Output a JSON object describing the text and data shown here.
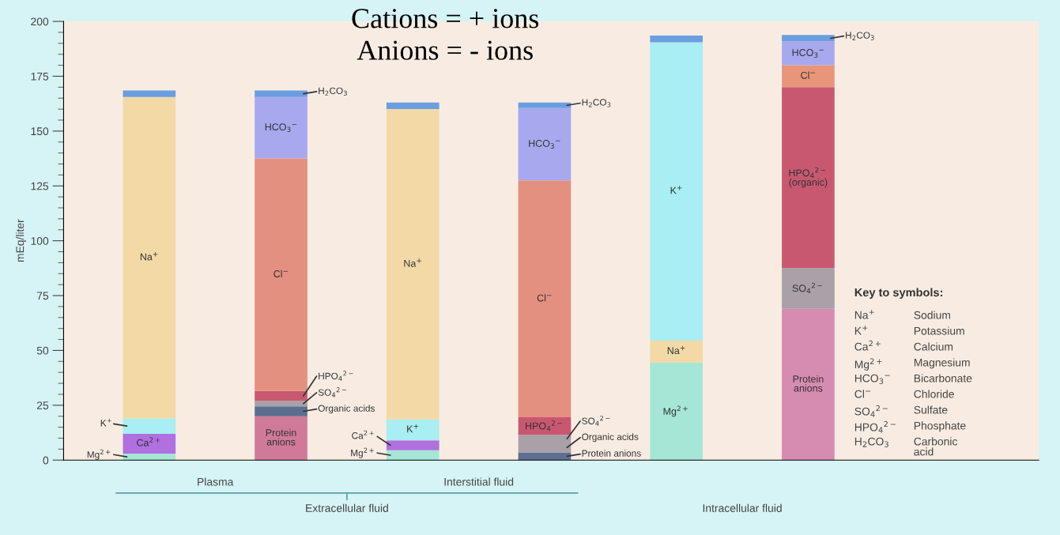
{
  "chart_data": {
    "type": "bar",
    "stacked": true,
    "title": "Cations = + ions\nAnions = - ions",
    "ylabel": "mEq/liter",
    "categories": [
      null,
      null,
      null,
      null,
      null,
      null
    ],
    "ylim": [
      0,
      200
    ],
    "yticks": [
      0,
      25,
      50,
      75,
      100,
      125,
      150,
      175,
      200
    ],
    "grid": false,
    "series": [
      {
        "name": "Mg$^{2+}$",
        "color": "#a6e6d6",
        "values": [
          3,
          null,
          4.5,
          null,
          44.5,
          null
        ]
      },
      {
        "name": "Ca$^{2+}$",
        "color": "#b070e0",
        "values": [
          9,
          null,
          4.5,
          null,
          null,
          null
        ]
      },
      {
        "name": "K$^{+}$",
        "color": "#a8eef2",
        "values": [
          7,
          null,
          9.5,
          null,
          null,
          null
        ]
      },
      {
        "name": "Na$^{+}$",
        "color": "#f2d9a6",
        "values": [
          146.5,
          null,
          141.5,
          null,
          10,
          null
        ]
      },
      {
        "name": "K$^{+}$",
        "color": "#a8eef2",
        "values": [
          null,
          null,
          null,
          null,
          136,
          null
        ]
      },
      {
        "color": "#6a9ee0",
        "values": [
          3,
          null,
          3,
          null,
          3,
          null
        ]
      },
      {
        "name": "Protein anions",
        "colors": [
          "#d07a9a",
          "#d07a9a",
          "#d07a9a",
          "#5f6f92",
          "#d68cb0",
          "#d68cb0"
        ],
        "values": [
          null,
          20,
          null,
          3.5,
          null,
          69
        ]
      },
      {
        "name": "Organic acids",
        "colors": [
          "#5a6f90",
          "#5a6f90",
          "#a9a0a8",
          "#a9a0a8",
          "#5a6f90",
          "#5a6f90"
        ],
        "values": [
          null,
          4.5,
          null,
          4.5,
          null,
          null
        ]
      },
      {
        "name": "SO$_{4}$$^{2−}$",
        "color": "#a9a0a8",
        "values": [
          null,
          2.5,
          null,
          3.5,
          null,
          18.5
        ]
      },
      {
        "name": "HPO$_{4}$$^{2−}$",
        "color": "#c85870",
        "values": [
          null,
          4.5,
          null,
          8,
          null,
          null
        ]
      },
      {
        "name": "HPO$_{4}$$^{2−}$ (organic)",
        "color": "#c85870",
        "values": [
          null,
          null,
          null,
          null,
          null,
          82.5
        ]
      },
      {
        "name": "Cl$^{−}$",
        "colors": [
          "#e49080",
          "#e49080",
          "#e49080",
          "#e49080",
          "#e8957a",
          "#e8957a"
        ],
        "values": [
          null,
          106,
          null,
          108,
          null,
          10
        ]
      },
      {
        "name": "HCO$_{3}$$^{−}$",
        "color": "#a8a8ee",
        "values": [
          null,
          28,
          null,
          33,
          null,
          10.8
        ]
      },
      {
        "name": "H$_{2}$CO$_{3}$",
        "color": "#6a9ee0",
        "values": [
          null,
          3,
          null,
          2.5,
          null,
          3
        ]
      }
    ],
    "annotations": [
      "Plasma",
      "Interstitial fluid",
      "Extracellular fluid",
      "Intracellular fluid",
      "Key to symbols:",
      "Na$^{+}$",
      "Sodium",
      "K$^{+}$",
      "Potassium",
      "Ca$^{2+}$",
      "Calcium",
      "Mg$^{2+}$",
      "Magnesium",
      "HCO$_{3}$$^{−}$",
      "Bicarbonate",
      "Cl$^{−}$",
      "Chloride",
      "SO$_{4}$$^{2−}$",
      "Sulfate",
      "HPO$_{4}$$^{2−}$",
      "Phosphate",
      "H$_{2}$CO$_{3}$",
      "Carbonic\nacid"
    ]
  }
}
